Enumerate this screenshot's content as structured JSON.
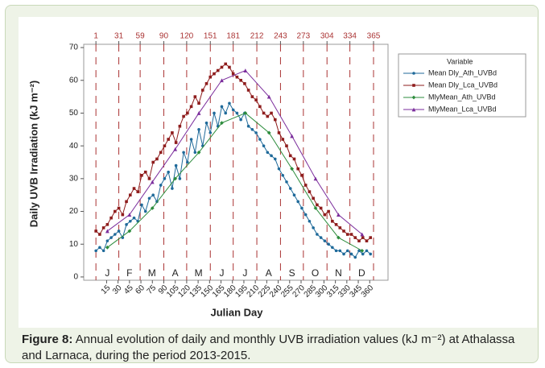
{
  "chart_data": {
    "type": "line",
    "y_label": "Daily UVB Irradiation (kJ m⁻²)",
    "x_label": "Julian Day",
    "legend_title": "Variable",
    "legend": "right",
    "x": [
      1,
      6,
      11,
      16,
      21,
      26,
      31,
      36,
      41,
      46,
      51,
      56,
      61,
      66,
      71,
      76,
      81,
      86,
      91,
      96,
      101,
      106,
      111,
      116,
      121,
      126,
      131,
      136,
      141,
      146,
      151,
      156,
      161,
      166,
      171,
      176,
      181,
      186,
      191,
      196,
      201,
      206,
      211,
      216,
      221,
      226,
      231,
      236,
      241,
      246,
      251,
      256,
      261,
      266,
      271,
      276,
      281,
      286,
      291,
      296,
      301,
      306,
      311,
      316,
      321,
      326,
      331,
      336,
      341,
      346,
      351,
      356,
      361
    ],
    "series": [
      {
        "name": "Mean Dly_Ath_UVBd",
        "color": "#1f6a9a",
        "marker": "circle",
        "values": [
          8,
          9,
          8,
          11,
          12,
          13,
          14,
          12,
          16,
          17,
          18,
          17,
          22,
          20,
          24,
          25,
          23,
          28,
          30,
          32,
          27,
          34,
          30,
          38,
          35,
          42,
          38,
          45,
          40,
          47,
          44,
          50,
          46,
          52,
          50,
          53,
          51,
          50,
          48,
          50,
          46,
          45,
          44,
          42,
          40,
          38,
          37,
          36,
          33,
          31,
          29,
          27,
          25,
          23,
          21,
          19,
          17,
          15,
          13,
          12,
          11,
          10,
          9,
          8,
          8,
          7,
          8,
          7,
          6,
          8,
          7,
          8,
          7
        ]
      },
      {
        "name": "Mean Dly_Lca_UVBd",
        "color": "#8e1c1c",
        "marker": "square",
        "values": [
          14,
          13,
          15,
          16,
          18,
          20,
          21,
          19,
          23,
          25,
          27,
          26,
          31,
          32,
          30,
          35,
          36,
          38,
          40,
          42,
          44,
          41,
          46,
          49,
          50,
          52,
          55,
          53,
          57,
          59,
          61,
          62,
          63,
          64,
          65,
          64,
          62,
          61,
          60,
          59,
          57,
          55,
          54,
          52,
          50,
          49,
          50,
          48,
          44,
          42,
          40,
          37,
          36,
          33,
          31,
          28,
          26,
          24,
          22,
          21,
          19,
          20,
          17,
          16,
          15,
          14,
          13,
          13,
          12,
          11,
          12,
          11,
          12
        ]
      },
      {
        "name": "MlyMean_Ath_UVBd",
        "color": "#2c8c3c",
        "marker": "diamond",
        "x": [
          16,
          45,
          75,
          105,
          136,
          166,
          197,
          228,
          258,
          289,
          319,
          350
        ],
        "values": [
          9,
          14,
          21,
          30,
          38,
          47,
          50,
          44,
          33,
          21,
          12,
          8
        ]
      },
      {
        "name": "MlyMean_Lca_UVBd",
        "color": "#7b2d9c",
        "marker": "triangle",
        "x": [
          16,
          45,
          75,
          105,
          136,
          166,
          197,
          228,
          258,
          289,
          319,
          350
        ],
        "values": [
          14,
          19,
          29,
          39,
          50,
          60,
          63,
          55,
          43,
          30,
          19,
          13
        ]
      }
    ],
    "xlim": [
      -15,
      384
    ],
    "xticks": [
      15,
      30,
      45,
      60,
      75,
      90,
      105,
      120,
      135,
      150,
      165,
      180,
      195,
      210,
      225,
      240,
      255,
      270,
      285,
      300,
      315,
      330,
      345,
      360
    ],
    "x2ticks": [
      1,
      31,
      59,
      90,
      120,
      151,
      181,
      212,
      243,
      273,
      304,
      334,
      365
    ],
    "month_labels": [
      "J",
      "F",
      "M",
      "A",
      "M",
      "J",
      "J",
      "A",
      "S",
      "O",
      "N",
      "D"
    ],
    "ylim": [
      -1,
      71
    ],
    "yticks": [
      0,
      10,
      20,
      30,
      40,
      50,
      60,
      70
    ]
  },
  "caption": {
    "label": "Figure 8:",
    "text": "Annual evolution of daily and monthly UVB irradiation values (kJ m⁻²) at Athalassa and Larnaca, during the period 2013-2015."
  }
}
